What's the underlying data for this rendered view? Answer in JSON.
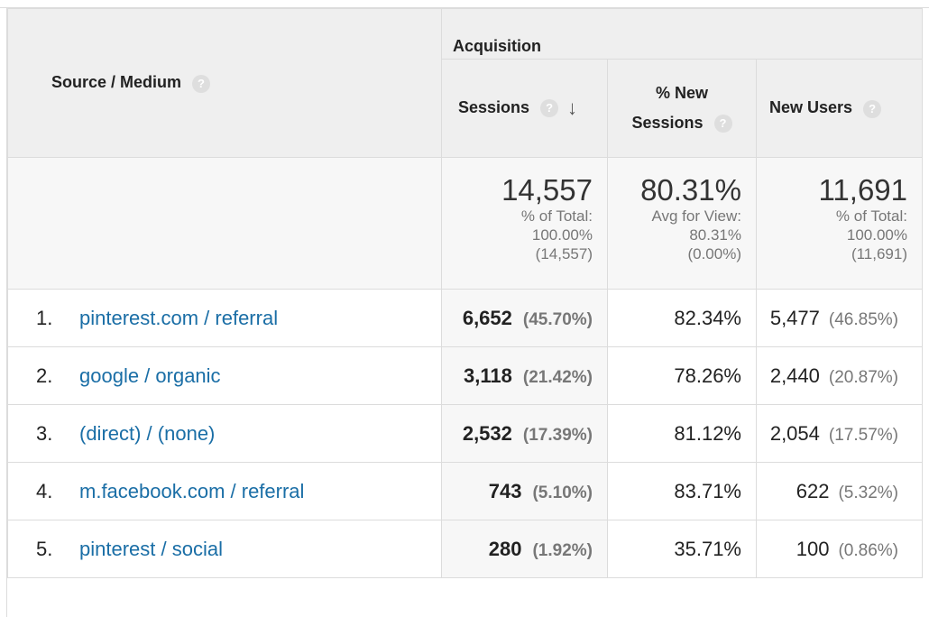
{
  "header": {
    "source_medium_label": "Source / Medium",
    "acquisition_label": "Acquisition",
    "sessions_label": "Sessions",
    "new_sessions_label_line1": "% New",
    "new_sessions_label_line2": "Sessions",
    "new_users_label": "New Users",
    "help_glyph": "?",
    "sort_glyph": "↓"
  },
  "totals": {
    "sessions": {
      "value": "14,557",
      "line1": "% of Total:",
      "line2": "100.00%",
      "line3": "(14,557)"
    },
    "new_sessions": {
      "value": "80.31%",
      "line1": "Avg for View:",
      "line2": "80.31%",
      "line3": "(0.00%)"
    },
    "new_users": {
      "value": "11,691",
      "line1": "% of Total:",
      "line2": "100.00%",
      "line3": "(11,691)"
    }
  },
  "rows": [
    {
      "rank": "1.",
      "source": "pinterest.com / referral",
      "sessions": "6,652",
      "sessions_pct": "(45.70%)",
      "new_sessions": "82.34%",
      "new_users": "5,477",
      "new_users_pct": "(46.85%)"
    },
    {
      "rank": "2.",
      "source": "google / organic",
      "sessions": "3,118",
      "sessions_pct": "(21.42%)",
      "new_sessions": "78.26%",
      "new_users": "2,440",
      "new_users_pct": "(20.87%)"
    },
    {
      "rank": "3.",
      "source": "(direct) / (none)",
      "sessions": "2,532",
      "sessions_pct": "(17.39%)",
      "new_sessions": "81.12%",
      "new_users": "2,054",
      "new_users_pct": "(17.57%)"
    },
    {
      "rank": "4.",
      "source": "m.facebook.com / referral",
      "sessions": "743",
      "sessions_pct": "(5.10%)",
      "new_sessions": "83.71%",
      "new_users": "622",
      "new_users_pct": "(5.32%)"
    },
    {
      "rank": "5.",
      "source": "pinterest / social",
      "sessions": "280",
      "sessions_pct": "(1.92%)",
      "new_sessions": "35.71%",
      "new_users": "100",
      "new_users_pct": "(0.86%)"
    }
  ]
}
